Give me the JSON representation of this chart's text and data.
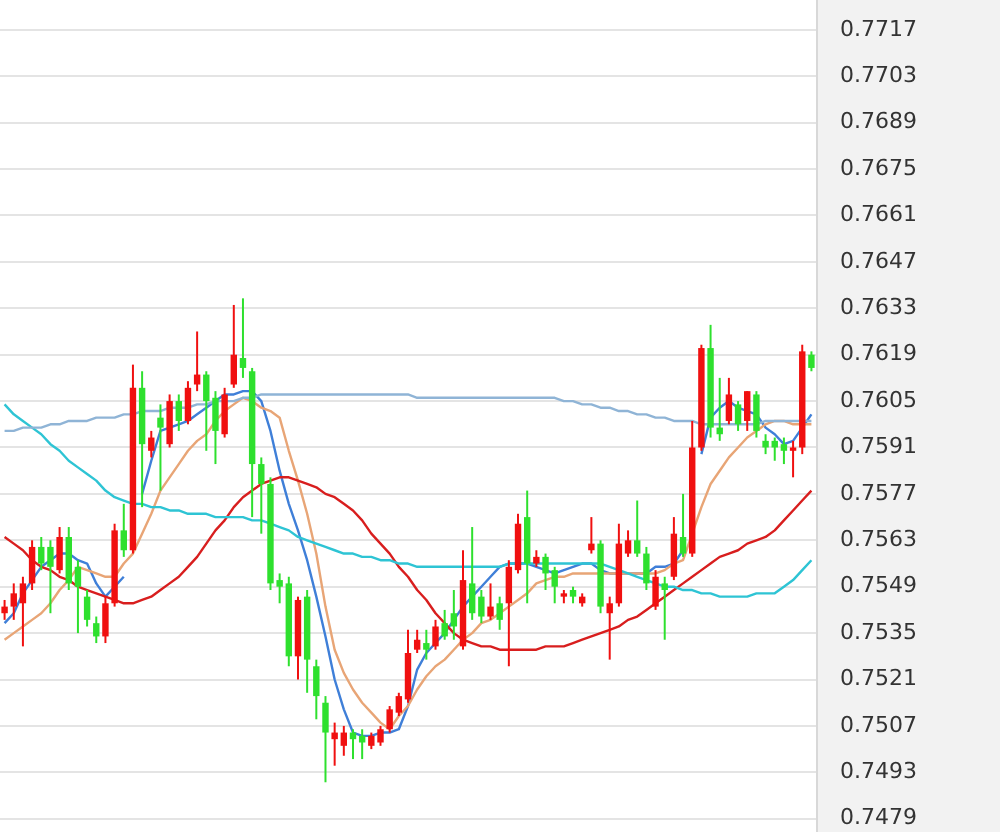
{
  "chart_data": {
    "type": "candlestick",
    "categories": [
      null,
      null,
      null,
      null,
      null,
      null,
      null,
      null,
      null,
      null,
      null,
      null,
      null,
      null,
      null,
      null,
      null,
      null,
      null,
      null,
      null,
      null,
      null,
      null,
      null,
      null,
      null,
      null,
      null,
      null,
      null,
      null,
      null,
      null,
      null,
      null,
      null,
      null,
      null,
      null,
      null,
      null,
      null,
      null,
      null,
      null,
      null,
      null,
      null,
      null,
      null,
      null,
      null,
      null,
      null,
      null,
      null,
      null,
      null,
      null,
      null,
      null,
      null,
      null,
      null,
      null,
      null,
      null,
      null,
      null,
      null,
      null,
      null,
      null,
      null,
      null,
      null,
      null,
      null,
      null,
      null,
      null,
      null,
      null,
      null,
      null,
      null,
      null,
      null
    ],
    "colors": [
      "#f01010",
      "#f01010",
      "#f01010",
      "#f01010",
      "#2ee02e",
      "#2ee02e",
      "#f01010",
      "#2ee02e",
      "#2ee02e",
      "#2ee02e",
      "#2ee02e",
      "#f01010",
      "#f01010",
      "#2ee02e",
      "#f01010",
      "#2ee02e",
      "#f01010",
      "#2ee02e",
      "#f01010",
      "#2ee02e",
      "#f01010",
      "#f01010",
      "#2ee02e",
      "#2ee02e",
      "#f01010",
      "#f01010",
      "#2ee02e",
      "#2ee02e",
      "#2ee02e",
      "#2ee02e",
      "#2ee02e",
      "#2ee02e",
      "#f01010",
      "#2ee02e",
      "#2ee02e",
      "#2ee02e",
      "#f01010",
      "#f01010",
      "#2ee02e",
      "#2ee02e",
      "#f01010",
      "#f01010",
      "#f01010",
      "#f01010",
      "#f01010",
      "#f01010",
      "#2ee02e",
      "#f01010",
      "#2ee02e",
      "#2ee02e",
      "#f01010",
      "#2ee02e",
      "#2ee02e",
      "#f01010",
      "#2ee02e",
      "#f01010",
      "#f01010",
      "#2ee02e",
      "#f01010",
      "#2ee02e",
      "#2ee02e",
      "#f01010",
      "#2ee02e",
      "#f01010",
      "#f01010",
      "#2ee02e",
      "#f01010",
      "#f01010",
      "#f01010",
      "#2ee02e",
      "#2ee02e",
      "#f01010",
      "#2ee02e",
      "#f01010",
      "#2ee02e",
      "#f01010",
      "#f01010",
      "#2ee02e",
      "#2ee02e",
      "#f01010",
      "#2ee02e",
      "#f01010",
      "#2ee02e",
      "#2ee02e",
      "#2ee02e",
      "#2ee02e",
      "#f01010",
      "#f01010",
      "#2ee02e"
    ],
    "ohlc": [
      [
        0.7541,
        0.7545,
        0.7539,
        0.7543
      ],
      [
        0.7543,
        0.755,
        0.7539,
        0.7547
      ],
      [
        0.7544,
        0.7552,
        0.7531,
        0.755
      ],
      [
        0.755,
        0.7563,
        0.7548,
        0.7561
      ],
      [
        0.7561,
        0.7564,
        0.7554,
        0.7556
      ],
      [
        0.7561,
        0.7563,
        0.7541,
        0.7555
      ],
      [
        0.7554,
        0.7567,
        0.7553,
        0.7564
      ],
      [
        0.7564,
        0.7567,
        0.7548,
        0.755
      ],
      [
        0.7555,
        0.7557,
        0.7535,
        0.7549
      ],
      [
        0.7546,
        0.7548,
        0.7537,
        0.7539
      ],
      [
        0.7538,
        0.754,
        0.7532,
        0.7534
      ],
      [
        0.7534,
        0.7546,
        0.7532,
        0.7544
      ],
      [
        0.7544,
        0.7568,
        0.7543,
        0.7566
      ],
      [
        0.7566,
        0.7574,
        0.7558,
        0.756
      ],
      [
        0.756,
        0.7616,
        0.7559,
        0.7609
      ],
      [
        0.7609,
        0.7614,
        0.7573,
        0.7592
      ],
      [
        0.759,
        0.7596,
        0.7588,
        0.7594
      ],
      [
        0.76,
        0.7604,
        0.7578,
        0.7597
      ],
      [
        0.7592,
        0.7607,
        0.7591,
        0.7605
      ],
      [
        0.7605,
        0.7607,
        0.7596,
        0.7599
      ],
      [
        0.7599,
        0.7611,
        0.7598,
        0.7609
      ],
      [
        0.761,
        0.7626,
        0.7608,
        0.7613
      ],
      [
        0.7613,
        0.7614,
        0.759,
        0.7605
      ],
      [
        0.7606,
        0.7608,
        0.7586,
        0.7596
      ],
      [
        0.7595,
        0.7609,
        0.7594,
        0.7607
      ],
      [
        0.761,
        0.7634,
        0.7609,
        0.7619
      ],
      [
        0.7618,
        0.7636,
        0.7612,
        0.7615
      ],
      [
        0.7614,
        0.7615,
        0.757,
        0.7586
      ],
      [
        0.7586,
        0.7588,
        0.7565,
        0.758
      ],
      [
        0.758,
        0.7582,
        0.7548,
        0.755
      ],
      [
        0.7551,
        0.7553,
        0.7544,
        0.7549
      ],
      [
        0.755,
        0.7552,
        0.7525,
        0.7528
      ],
      [
        0.7528,
        0.7546,
        0.7521,
        0.7545
      ],
      [
        0.7546,
        0.7548,
        0.7517,
        0.7527
      ],
      [
        0.7525,
        0.7527,
        0.7509,
        0.7516
      ],
      [
        0.7514,
        0.7516,
        0.749,
        0.7505
      ],
      [
        0.7503,
        0.7508,
        0.7495,
        0.7505
      ],
      [
        0.7501,
        0.7507,
        0.7498,
        0.7505
      ],
      [
        0.7505,
        0.7506,
        0.7497,
        0.7503
      ],
      [
        0.7504,
        0.7506,
        0.7497,
        0.7502
      ],
      [
        0.7501,
        0.7505,
        0.75,
        0.7504
      ],
      [
        0.7502,
        0.7507,
        0.7501,
        0.7506
      ],
      [
        0.7506,
        0.7513,
        0.7505,
        0.7512
      ],
      [
        0.7511,
        0.7517,
        0.751,
        0.7516
      ],
      [
        0.7515,
        0.7536,
        0.7514,
        0.7529
      ],
      [
        0.753,
        0.7536,
        0.7529,
        0.7533
      ],
      [
        0.7532,
        0.7536,
        0.7527,
        0.753
      ],
      [
        0.7531,
        0.7539,
        0.753,
        0.7537
      ],
      [
        0.7538,
        0.7542,
        0.7533,
        0.7534
      ],
      [
        0.7541,
        0.7548,
        0.7533,
        0.7537
      ],
      [
        0.7531,
        0.756,
        0.753,
        0.7551
      ],
      [
        0.755,
        0.7567,
        0.7539,
        0.7541
      ],
      [
        0.7546,
        0.7548,
        0.7538,
        0.754
      ],
      [
        0.754,
        0.755,
        0.7539,
        0.7543
      ],
      [
        0.7544,
        0.7546,
        0.7536,
        0.7539
      ],
      [
        0.7544,
        0.7557,
        0.7525,
        0.7555
      ],
      [
        0.7554,
        0.7571,
        0.7553,
        0.7568
      ],
      [
        0.757,
        0.7578,
        0.7544,
        0.7556
      ],
      [
        0.7556,
        0.756,
        0.7555,
        0.7558
      ],
      [
        0.7558,
        0.7559,
        0.7548,
        0.7553
      ],
      [
        0.7554,
        0.7555,
        0.7544,
        0.7549
      ],
      [
        0.7546,
        0.7548,
        0.7544,
        0.7547
      ],
      [
        0.7548,
        0.7549,
        0.7544,
        0.7546
      ],
      [
        0.7544,
        0.7547,
        0.7543,
        0.7546
      ],
      [
        0.756,
        0.757,
        0.7559,
        0.7562
      ],
      [
        0.7562,
        0.7563,
        0.7541,
        0.7543
      ],
      [
        0.7541,
        0.7546,
        0.7527,
        0.7544
      ],
      [
        0.7544,
        0.7568,
        0.7543,
        0.7562
      ],
      [
        0.7559,
        0.7566,
        0.7558,
        0.7563
      ],
      [
        0.7563,
        0.7575,
        0.7558,
        0.7559
      ],
      [
        0.7559,
        0.7561,
        0.7548,
        0.755
      ],
      [
        0.7543,
        0.7554,
        0.7542,
        0.7552
      ],
      [
        0.755,
        0.7552,
        0.7533,
        0.7548
      ],
      [
        0.7552,
        0.757,
        0.7551,
        0.7565
      ],
      [
        0.7564,
        0.7577,
        0.7558,
        0.7559
      ],
      [
        0.7559,
        0.7599,
        0.7558,
        0.7591
      ],
      [
        0.7591,
        0.7622,
        0.759,
        0.7621
      ],
      [
        0.7621,
        0.7628,
        0.7594,
        0.7597
      ],
      [
        0.7597,
        0.7612,
        0.7593,
        0.7595
      ],
      [
        0.7599,
        0.7612,
        0.7598,
        0.7607
      ],
      [
        0.7604,
        0.7605,
        0.7596,
        0.7598
      ],
      [
        0.7599,
        0.7608,
        0.7596,
        0.7608
      ],
      [
        0.7607,
        0.7608,
        0.7594,
        0.7596
      ],
      [
        0.7593,
        0.7595,
        0.7589,
        0.7591
      ],
      [
        0.7593,
        0.7594,
        0.7587,
        0.7591
      ],
      [
        0.7592,
        0.7594,
        0.7586,
        0.759
      ],
      [
        0.759,
        0.7593,
        0.7582,
        0.7591
      ],
      [
        0.7591,
        0.7622,
        0.7589,
        0.762
      ],
      [
        0.7619,
        0.762,
        0.7614,
        0.7615
      ]
    ],
    "series": [
      {
        "type": "line",
        "color": "#8fb4d6",
        "values": [
          0.7596,
          0.7596,
          0.7597,
          0.7597,
          0.7597,
          0.7598,
          0.7598,
          0.7599,
          0.7599,
          0.7599,
          0.76,
          0.76,
          0.76,
          0.7601,
          0.7601,
          0.7602,
          0.7602,
          0.7602,
          0.7603,
          0.7603,
          0.7603,
          0.7604,
          0.7604,
          0.7605,
          0.7605,
          0.7605,
          0.7606,
          0.7606,
          0.7607,
          0.7607,
          0.7607,
          0.7607,
          0.7607,
          0.7607,
          0.7607,
          0.7607,
          0.7607,
          0.7607,
          0.7607,
          0.7607,
          0.7607,
          0.7607,
          0.7607,
          0.7607,
          0.7607,
          0.7606,
          0.7606,
          0.7606,
          0.7606,
          0.7606,
          0.7606,
          0.7606,
          0.7606,
          0.7606,
          0.7606,
          0.7606,
          0.7606,
          0.7606,
          0.7606,
          0.7606,
          0.7606,
          0.7605,
          0.7605,
          0.7604,
          0.7604,
          0.7603,
          0.7603,
          0.7602,
          0.7602,
          0.7601,
          0.7601,
          0.76,
          0.76,
          0.7599,
          0.7599,
          0.7599,
          0.7598,
          0.7598,
          0.7598,
          0.7598,
          0.7598,
          0.7598,
          0.7598,
          0.7599,
          0.7599,
          0.7599,
          0.7599,
          0.7599,
          0.7599
        ]
      },
      {
        "type": "line",
        "color": "#2ec4d4",
        "values": [
          0.7604,
          0.7601,
          0.7599,
          0.7597,
          0.7595,
          0.7592,
          0.759,
          0.7587,
          0.7585,
          0.7583,
          0.7581,
          0.7578,
          0.7576,
          0.7575,
          0.7574,
          0.7574,
          0.7573,
          0.7573,
          0.7572,
          0.7572,
          0.7571,
          0.7571,
          0.7571,
          0.757,
          0.757,
          0.757,
          0.757,
          0.7569,
          0.7569,
          0.7568,
          0.7567,
          0.7566,
          0.7564,
          0.7563,
          0.7562,
          0.7561,
          0.756,
          0.7559,
          0.7559,
          0.7558,
          0.7558,
          0.7557,
          0.7557,
          0.7556,
          0.7556,
          0.7555,
          0.7555,
          0.7555,
          0.7555,
          0.7555,
          0.7555,
          0.7555,
          0.7555,
          0.7555,
          0.7555,
          0.7556,
          0.7556,
          0.7556,
          0.7556,
          0.7556,
          0.7556,
          0.7556,
          0.7556,
          0.7556,
          0.7556,
          0.7556,
          0.7555,
          0.7554,
          0.7553,
          0.7552,
          0.7551,
          0.755,
          0.7549,
          0.7549,
          0.7548,
          0.7548,
          0.7547,
          0.7547,
          0.7546,
          0.7546,
          0.7546,
          0.7546,
          0.7547,
          0.7547,
          0.7547,
          0.7549,
          0.7551,
          0.7554,
          0.7557
        ]
      },
      {
        "type": "line",
        "color": "#d81e1e",
        "values": [
          0.7564,
          0.7562,
          0.756,
          0.7557,
          0.7555,
          0.7554,
          0.7552,
          0.7551,
          0.7549,
          0.7548,
          0.7547,
          0.7546,
          0.7545,
          0.7544,
          0.7544,
          0.7545,
          0.7546,
          0.7548,
          0.755,
          0.7552,
          0.7555,
          0.7558,
          0.7562,
          0.7566,
          0.7569,
          0.7573,
          0.7576,
          0.7578,
          0.758,
          0.7581,
          0.7582,
          0.7582,
          0.7581,
          0.758,
          0.7579,
          0.7577,
          0.7576,
          0.7574,
          0.7572,
          0.7569,
          0.7565,
          0.7562,
          0.7559,
          0.7555,
          0.7552,
          0.7548,
          0.7545,
          0.7541,
          0.7538,
          0.7535,
          0.7533,
          0.7532,
          0.7531,
          0.7531,
          0.753,
          0.753,
          0.753,
          0.753,
          0.753,
          0.7531,
          0.7531,
          0.7531,
          0.7532,
          0.7533,
          0.7534,
          0.7535,
          0.7536,
          0.7537,
          0.7539,
          0.754,
          0.7542,
          0.7544,
          0.7546,
          0.7548,
          0.755,
          0.7552,
          0.7554,
          0.7556,
          0.7558,
          0.7559,
          0.756,
          0.7562,
          0.7563,
          0.7564,
          0.7566,
          0.7569,
          0.7572,
          0.7575,
          0.7578
        ]
      },
      {
        "type": "line",
        "color": "#e8a576",
        "values": [
          0.7533,
          0.7535,
          0.7537,
          0.7539,
          0.7541,
          0.7544,
          0.7548,
          0.7551,
          0.7555,
          0.7554,
          0.7553,
          0.7552,
          0.7552,
          0.7556,
          0.7559,
          0.7565,
          0.7571,
          0.7578,
          0.7582,
          0.7586,
          0.759,
          0.7593,
          0.7595,
          0.7599,
          0.7602,
          0.7604,
          0.7606,
          0.7605,
          0.7603,
          0.7602,
          0.76,
          0.759,
          0.7581,
          0.7571,
          0.7559,
          0.7543,
          0.753,
          0.7523,
          0.7518,
          0.7514,
          0.7511,
          0.7508,
          0.7506,
          0.751,
          0.7513,
          0.7518,
          0.7522,
          0.7525,
          0.7527,
          0.753,
          0.7533,
          0.7535,
          0.7538,
          0.7539,
          0.7541,
          0.7543,
          0.7545,
          0.7547,
          0.755,
          0.7551,
          0.7552,
          0.7552,
          0.7553,
          0.7553,
          0.7553,
          0.7553,
          0.7553,
          0.7553,
          0.7553,
          0.7553,
          0.7553,
          0.7553,
          0.7554,
          0.7556,
          0.7557,
          0.7565,
          0.7573,
          0.758,
          0.7584,
          0.7588,
          0.7591,
          0.7594,
          0.7596,
          0.7598,
          0.7599,
          0.7599,
          0.7598,
          0.7598,
          0.7598
        ]
      },
      {
        "type": "line",
        "color": "#3f7fd8",
        "values": [
          0.7538,
          0.7541,
          0.7547,
          0.7551,
          0.7555,
          0.7557,
          0.7559,
          0.7559,
          0.7557,
          0.7556,
          0.755,
          0.7546,
          0.7549,
          0.7552,
          null,
          0.7577,
          0.7587,
          0.7596,
          0.7597,
          0.7598,
          0.7599,
          0.7601,
          0.7603,
          0.7605,
          0.7607,
          0.7607,
          0.7608,
          0.7608,
          0.7605,
          0.7596,
          0.7584,
          0.7574,
          0.7566,
          0.7557,
          0.7546,
          0.7534,
          0.7521,
          0.7512,
          0.7505,
          0.7504,
          0.7504,
          0.7505,
          0.7505,
          0.7506,
          0.7513,
          0.7524,
          0.7529,
          0.7532,
          0.7535,
          0.7539,
          0.7543,
          0.7546,
          0.7549,
          0.7552,
          0.7555,
          0.7556,
          0.7556,
          0.7556,
          0.7555,
          0.7554,
          0.7553,
          0.7554,
          0.7555,
          0.7556,
          0.7556,
          0.7554,
          0.7553,
          0.7553,
          0.7553,
          0.7553,
          0.7553,
          0.7555,
          0.7555,
          0.7556,
          0.756,
          null,
          0.7589,
          0.76,
          0.7603,
          0.7605,
          0.7603,
          0.7602,
          0.7601,
          0.7597,
          0.7595,
          0.7592,
          0.7593,
          0.7597,
          0.7601
        ]
      }
    ],
    "ylim": [
      0.7475,
      0.7726
    ],
    "yticks": [
      0.7717,
      0.7703,
      0.7689,
      0.7675,
      0.7661,
      0.7647,
      0.7633,
      0.7619,
      0.7605,
      0.7591,
      0.7577,
      0.7563,
      0.7549,
      0.7535,
      0.7521,
      0.7507,
      0.7493,
      0.7479
    ],
    "grid": "y",
    "legend": false,
    "tick_labels": "y",
    "marker": "none",
    "line_style": "solid"
  }
}
